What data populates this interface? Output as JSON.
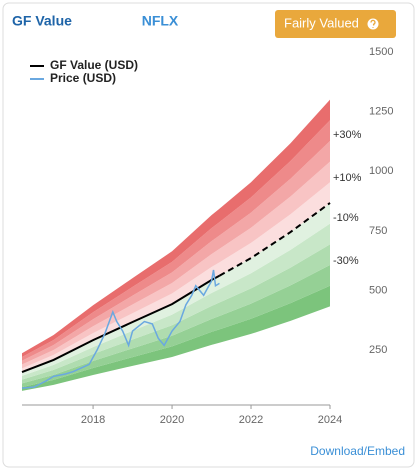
{
  "title": "GF Value",
  "ticker": "NFLX",
  "button": "Fairly Valued",
  "link": "Download/Embed",
  "chart_data": {
    "type": "line",
    "xlim": [
      2016.2,
      2024
    ],
    "xticks": [
      2018,
      2020,
      2022,
      2024
    ],
    "ylim": [
      20,
      1500
    ],
    "yticks": [
      250,
      500,
      750,
      1000,
      1250,
      1500
    ],
    "legend": "top-left",
    "band_labels": [
      "+30%",
      "+10%",
      "-10%",
      "-30%"
    ],
    "band_edges": [
      0.5,
      0.6,
      0.7,
      0.8,
      0.9,
      1.0,
      1.1,
      1.2,
      1.3,
      1.4,
      1.5
    ],
    "band_colors": [
      "#7cc47c",
      "#95d095",
      "#afdcaf",
      "#c8e7c8",
      "#e0f1e0",
      "#fbdede",
      "#f8c4c4",
      "#f3a7a7",
      "#ee8a8a",
      "#e86d6d"
    ],
    "series": [
      {
        "name": "GF Value (USD)",
        "color": "#000000",
        "dashed_from": 2021.2,
        "x": [
          2016.2,
          2017,
          2018,
          2019,
          2020,
          2021,
          2021.2,
          2022,
          2023,
          2024
        ],
        "values": [
          158,
          209,
          292,
          368,
          443,
          544,
          562,
          636,
          745,
          867
        ]
      },
      {
        "name": "Price (USD)",
        "color": "#6aa8e0",
        "x": [
          2016.2,
          2016.5,
          2016.8,
          2017,
          2017.3,
          2017.5,
          2017.9,
          2018.1,
          2018.3,
          2018.5,
          2018.6,
          2018.75,
          2018.9,
          2019.0,
          2019.3,
          2019.5,
          2019.65,
          2019.8,
          2020.0,
          2020.2,
          2020.35,
          2020.5,
          2020.6,
          2020.8,
          2021.0,
          2021.05,
          2021.1,
          2021.2
        ],
        "values": [
          91,
          95,
          120,
          140,
          150,
          160,
          190,
          250,
          320,
          410,
          370,
          330,
          270,
          330,
          370,
          360,
          300,
          270,
          330,
          370,
          440,
          480,
          520,
          480,
          540,
          586,
          520,
          530
        ]
      }
    ]
  }
}
